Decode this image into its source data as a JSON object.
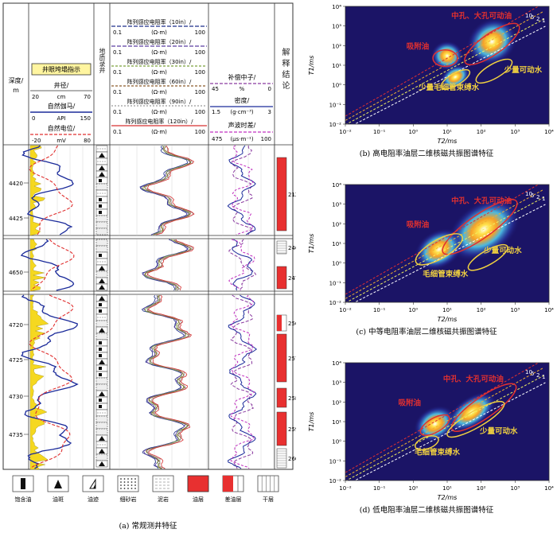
{
  "left_panel": {
    "caption": "(a) 常规测井特征",
    "header": {
      "depth_label": "深度/",
      "depth_unit": "m",
      "wellbore_box": "井眼垮塌指示",
      "caliper": {
        "name": "井径/",
        "min": "20",
        "unit": "cm",
        "max": "70"
      },
      "gr": {
        "name": "自然伽马/",
        "min": "0",
        "unit": "API",
        "max": "150"
      },
      "sp": {
        "name": "自然电位/",
        "min": "-20",
        "unit": "mV",
        "max": "80"
      },
      "lithology_label": "地质录井",
      "resistivity": [
        {
          "name": "阵列感应电阻率（10in）/",
          "min": "0.1",
          "unit": "(Ω·m)",
          "max": "100",
          "color": "#1f2f8a"
        },
        {
          "name": "阵列感应电阻率（20in）/",
          "min": "0.1",
          "unit": "(Ω·m)",
          "max": "100",
          "color": "#5a3fa0"
        },
        {
          "name": "阵列感应电阻率（30in）/",
          "min": "0.1",
          "unit": "(Ω·m)",
          "max": "100",
          "color": "#7aa03a"
        },
        {
          "name": "阵列感应电阻率（60in）/",
          "min": "0.1",
          "unit": "(Ω·m)",
          "max": "100",
          "color": "#8a5a2a"
        },
        {
          "name": "阵列感应电阻率（90in）/",
          "min": "0.1",
          "unit": "(Ω·m)",
          "max": "100",
          "color": "#9a9a9a"
        },
        {
          "name": "阵列感应电阻率（120in）/",
          "min": "0.1",
          "unit": "(Ω·m)",
          "max": "100",
          "color": "#d63030"
        }
      ],
      "neutron": {
        "name": "补偿中子/",
        "min": "45",
        "unit": "%",
        "max": "0"
      },
      "density": {
        "name": "密度/",
        "min": "1.5",
        "unit": "(g·cm⁻³)",
        "max": "3"
      },
      "sonic": {
        "name": "声波时差/",
        "min": "475",
        "unit": "(μs·m⁻¹)",
        "max": "100"
      },
      "interpretation_label": "解释结论"
    },
    "depth_ticks": {
      "section1": [
        "4420",
        "4425"
      ],
      "section2": [
        "4650"
      ],
      "section3": [
        "4720",
        "4725",
        "4730",
        "4735"
      ]
    },
    "layers": [
      "212",
      "246",
      "247",
      "256",
      "257",
      "258",
      "259",
      "260"
    ],
    "legend": [
      {
        "label": "饱含油",
        "icon": "oil-saturated-icon"
      },
      {
        "label": "油斑",
        "icon": "oil-spot-icon"
      },
      {
        "label": "油迹",
        "icon": "oil-trace-icon"
      },
      {
        "label": "细砂岩",
        "icon": "fine-sandstone-icon"
      },
      {
        "label": "泥岩",
        "icon": "mudstone-icon"
      },
      {
        "label": "油层",
        "icon": "oil-layer-icon"
      },
      {
        "label": "差油层",
        "icon": "poor-oil-layer-icon"
      },
      {
        "label": "干层",
        "icon": "dry-layer-icon"
      }
    ]
  },
  "nmr_panels": [
    {
      "caption": "(b) 高电阻率油层二维核磁共振图谱特征",
      "ylabel": "T1/ms",
      "xlabel": "T2/ms",
      "annotations": {
        "large_pore": "中孔、大孔可动油",
        "adsorbed": "吸附油",
        "movable_water": "少量可动水",
        "bound_water": "少量毛细管束缚水"
      },
      "ratio_labels": [
        "10",
        "5",
        "2",
        "1"
      ]
    },
    {
      "caption": "(c) 中等电阻率油层二维核磁共振图谱特征",
      "ylabel": "T1/ms",
      "xlabel": "T2/ms",
      "annotations": {
        "large_pore": "中孔、大孔可动油",
        "adsorbed": "吸附油",
        "movable_water": "少量可动水",
        "bound_water": "毛细管束缚水"
      },
      "ratio_labels": [
        "10",
        "5",
        "2",
        "1"
      ]
    },
    {
      "caption": "(d) 低电阻率油层二维核磁共振图谱特征",
      "ylabel": "T1/ms",
      "xlabel": "T2/ms",
      "annotations": {
        "large_pore": "中孔、大孔可动油",
        "adsorbed": "吸附油",
        "movable_water": "少量可动水",
        "bound_water": "毛细管束缚水"
      },
      "ratio_labels": [
        "10",
        "5",
        "2",
        "1"
      ]
    }
  ],
  "axis_ticks": {
    "x": [
      "10⁻²",
      "10⁻¹",
      "10⁰",
      "10¹",
      "10²",
      "10³",
      "10⁴"
    ],
    "y": [
      "10⁴",
      "10³",
      "10²",
      "10¹",
      "10⁰",
      "10⁻¹",
      "10⁻²"
    ]
  },
  "colors": {
    "oil_layer": "#e83030",
    "sp_red": "#e03030",
    "gr_blue": "#1a2a9a",
    "plot_bg": "#1b1466",
    "ellipse_red": "#e03030",
    "ellipse_yellow": "#f0d040"
  }
}
